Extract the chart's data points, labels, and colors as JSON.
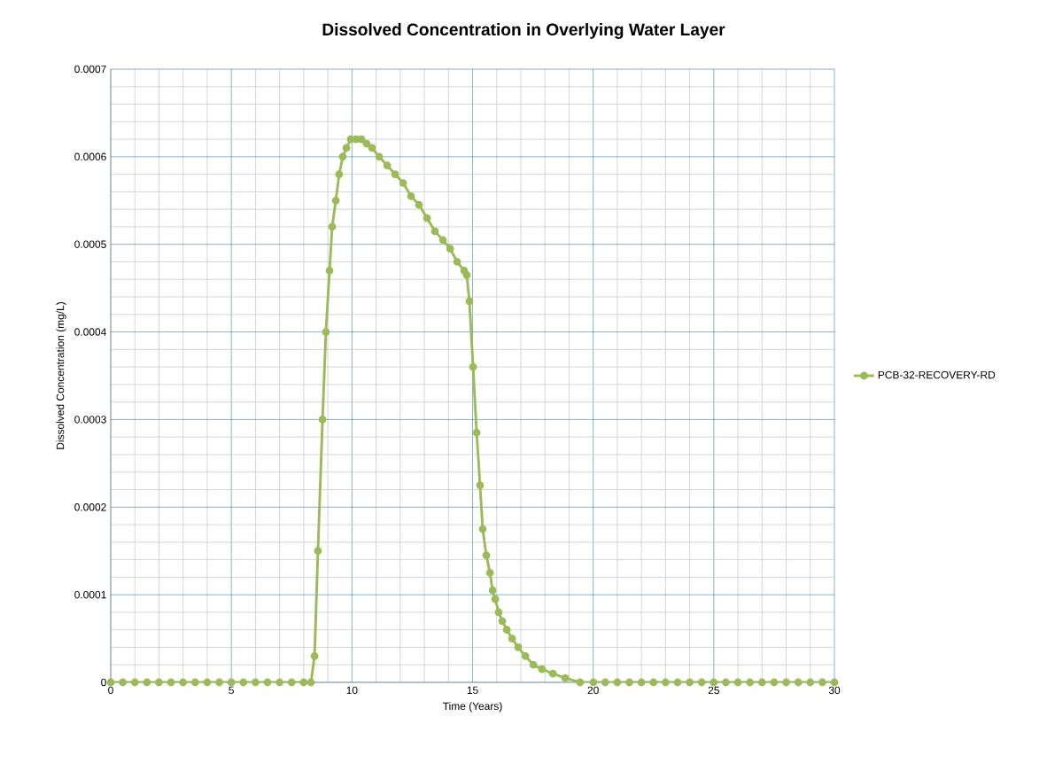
{
  "chart_data": {
    "type": "line",
    "title": "Dissolved Concentration in Overlying Water Layer",
    "xlabel": "Time (Years)",
    "ylabel": "Dissolved Concentration (mg/L)",
    "xlim": [
      0,
      30
    ],
    "ylim": [
      0,
      0.0007
    ],
    "xticks": [
      0,
      5,
      10,
      15,
      20,
      25,
      30
    ],
    "yticks": [
      0,
      0.0001,
      0.0002,
      0.0003,
      0.0004,
      0.0005,
      0.0006,
      0.0007
    ],
    "grid": true,
    "legend": "right",
    "marker": "circle",
    "line_style": "solid",
    "x": [
      0,
      0.5,
      1,
      1.5,
      2,
      2.5,
      3,
      3.5,
      4,
      4.5,
      5,
      5.5,
      6,
      6.5,
      7,
      7.5,
      8,
      8.3,
      8.45,
      8.59,
      8.78,
      8.92,
      9.07,
      9.18,
      9.33,
      9.47,
      9.62,
      9.77,
      9.95,
      10.17,
      10.39,
      10.61,
      10.83,
      11.13,
      11.46,
      11.79,
      12.12,
      12.45,
      12.78,
      13.11,
      13.44,
      13.77,
      14.07,
      14.36,
      14.65,
      14.76,
      14.87,
      15.02,
      15.17,
      15.31,
      15.42,
      15.57,
      15.72,
      15.83,
      15.94,
      16.08,
      16.23,
      16.42,
      16.64,
      16.89,
      17.19,
      17.52,
      17.88,
      18.33,
      18.84,
      19.46,
      20.01,
      20.5,
      21,
      21.5,
      22,
      22.5,
      23,
      23.5,
      24,
      24.5,
      25,
      25.5,
      26,
      26.5,
      27,
      27.5,
      28,
      28.5,
      29,
      29.5,
      30
    ],
    "series": [
      {
        "name": "PCB-32-RECOVERY-RD",
        "color": "#9bbb59",
        "values": [
          0,
          0,
          0,
          0,
          0,
          0,
          0,
          0,
          0,
          0,
          0,
          0,
          0,
          0,
          0,
          0,
          0,
          0,
          3e-05,
          0.00015,
          0.0003,
          0.0004,
          0.00047,
          0.00052,
          0.00055,
          0.00058,
          0.0006,
          0.00061,
          0.00062,
          0.00062,
          0.00062,
          0.000615,
          0.00061,
          0.0006,
          0.00059,
          0.00058,
          0.00057,
          0.000555,
          0.000545,
          0.00053,
          0.000515,
          0.000505,
          0.000495,
          0.00048,
          0.00047,
          0.000465,
          0.000435,
          0.00036,
          0.000285,
          0.000225,
          0.000175,
          0.000145,
          0.000125,
          0.000105,
          9.5e-05,
          8e-05,
          7e-05,
          6e-05,
          5e-05,
          4e-05,
          3e-05,
          2e-05,
          1.5e-05,
          1e-05,
          5e-06,
          0,
          0,
          0,
          0,
          0,
          0,
          0,
          0,
          0,
          0,
          0,
          0,
          0,
          0,
          0,
          0,
          0,
          0,
          0,
          0,
          0,
          0
        ]
      }
    ]
  }
}
